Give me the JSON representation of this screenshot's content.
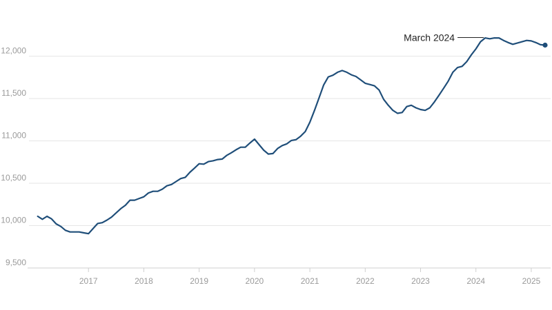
{
  "chart_data": {
    "type": "line",
    "title": "",
    "xlabel": "",
    "ylabel": "",
    "ylim": [
      9500,
      12500
    ],
    "xlim": [
      "2016-01",
      "2025-04"
    ],
    "grid": "horizontal",
    "colors": {
      "line": "#1f4e79",
      "grid": "#e6e6e6",
      "tick_label": "#9a9a9a"
    },
    "y_ticks": [
      {
        "value": 9500,
        "label": "9,500"
      },
      {
        "value": 10000,
        "label": "10,000"
      },
      {
        "value": 10500,
        "label": "10,500"
      },
      {
        "value": 11000,
        "label": "11,000"
      },
      {
        "value": 11500,
        "label": "11,500"
      },
      {
        "value": 12000,
        "label": "12,000"
      }
    ],
    "x_ticks": [
      {
        "value": "2017-01",
        "label": "2017"
      },
      {
        "value": "2018-01",
        "label": "2018"
      },
      {
        "value": "2019-01",
        "label": "2019"
      },
      {
        "value": "2020-01",
        "label": "2020"
      },
      {
        "value": "2021-01",
        "label": "2021"
      },
      {
        "value": "2022-01",
        "label": "2022"
      },
      {
        "value": "2023-01",
        "label": "2023"
      },
      {
        "value": "2024-01",
        "label": "2024"
      },
      {
        "value": "2025-01",
        "label": "2025"
      }
    ],
    "annotation": {
      "label": "March 2024",
      "x": "2024-03"
    },
    "series": [
      {
        "x": [
          "2016-02",
          "2016-03",
          "2016-04",
          "2016-05",
          "2016-06",
          "2016-07",
          "2016-08",
          "2016-09",
          "2016-10",
          "2016-11",
          "2016-12",
          "2017-01",
          "2017-02",
          "2017-03",
          "2017-04",
          "2017-05",
          "2017-06",
          "2017-07",
          "2017-08",
          "2017-09",
          "2017-10",
          "2017-11",
          "2017-12",
          "2018-01",
          "2018-02",
          "2018-03",
          "2018-04",
          "2018-05",
          "2018-06",
          "2018-07",
          "2018-08",
          "2018-09",
          "2018-10",
          "2018-11",
          "2018-12",
          "2019-01",
          "2019-02",
          "2019-03",
          "2019-04",
          "2019-05",
          "2019-06",
          "2019-07",
          "2019-08",
          "2019-09",
          "2019-10",
          "2019-11",
          "2019-12",
          "2020-01",
          "2020-02",
          "2020-03",
          "2020-04",
          "2020-05",
          "2020-06",
          "2020-07",
          "2020-08",
          "2020-09",
          "2020-10",
          "2020-11",
          "2020-12",
          "2021-01",
          "2021-02",
          "2021-03",
          "2021-04",
          "2021-05",
          "2021-06",
          "2021-07",
          "2021-08",
          "2021-09",
          "2021-10",
          "2021-11",
          "2021-12",
          "2022-01",
          "2022-02",
          "2022-03",
          "2022-04",
          "2022-05",
          "2022-06",
          "2022-07",
          "2022-08",
          "2022-09",
          "2022-10",
          "2022-11",
          "2022-12",
          "2023-01",
          "2023-02",
          "2023-03",
          "2023-04",
          "2023-05",
          "2023-06",
          "2023-07",
          "2023-08",
          "2023-09",
          "2023-10",
          "2023-11",
          "2023-12",
          "2024-01",
          "2024-02",
          "2024-03",
          "2024-04",
          "2024-05",
          "2024-06",
          "2024-07",
          "2024-08",
          "2024-09",
          "2024-10",
          "2024-11",
          "2024-12",
          "2025-01",
          "2025-02",
          "2025-03",
          "2025-04"
        ],
        "values": [
          10110,
          10075,
          10110,
          10080,
          10020,
          9990,
          9945,
          9925,
          9925,
          9925,
          9915,
          9905,
          9965,
          10025,
          10035,
          10065,
          10100,
          10150,
          10200,
          10240,
          10300,
          10300,
          10320,
          10340,
          10385,
          10405,
          10405,
          10430,
          10470,
          10485,
          10520,
          10555,
          10570,
          10630,
          10680,
          10730,
          10725,
          10755,
          10765,
          10780,
          10785,
          10830,
          10860,
          10895,
          10925,
          10925,
          10975,
          11020,
          10955,
          10890,
          10845,
          10850,
          10910,
          10945,
          10965,
          11005,
          11015,
          11055,
          11110,
          11220,
          11360,
          11510,
          11660,
          11755,
          11775,
          11810,
          11830,
          11810,
          11780,
          11760,
          11720,
          11680,
          11665,
          11650,
          11600,
          11490,
          11420,
          11360,
          11325,
          11335,
          11405,
          11420,
          11390,
          11370,
          11360,
          11390,
          11460,
          11540,
          11620,
          11705,
          11810,
          11865,
          11880,
          11935,
          12015,
          12085,
          12170,
          12215,
          12205,
          12215,
          12215,
          12185,
          12160,
          12140,
          12155,
          12170,
          12185,
          12180,
          12160,
          12135,
          12130
        ]
      }
    ]
  }
}
